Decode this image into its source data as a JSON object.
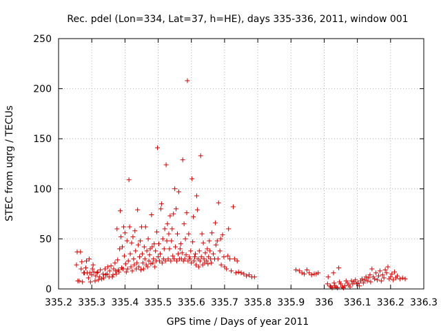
{
  "chart_data": {
    "type": "scatter",
    "title": "Rec. pdel (Lon=334, Lat=37, h=HE), days 335-336, 2011, window 001",
    "xlabel": "GPS time / Days of year 2011",
    "ylabel": "STEC from uqrg / TECUs",
    "xlim": [
      335.2,
      336.3
    ],
    "ylim": [
      0,
      250
    ],
    "xticks": [
      "335.2",
      "335.3",
      "335.4",
      "335.5",
      "335.6",
      "335.7",
      "335.8",
      "335.9",
      "336",
      "336.1",
      "336.2",
      "336.3"
    ],
    "yticks": [
      "0",
      "50",
      "100",
      "150",
      "200",
      "250"
    ],
    "grid": true,
    "marker": "+",
    "color": "#cc0000",
    "series": [
      {
        "name": "STEC",
        "points": [
          [
            335.254,
            24
          ],
          [
            335.256,
            37
          ],
          [
            335.258,
            8
          ],
          [
            335.262,
            8
          ],
          [
            335.266,
            37
          ],
          [
            335.268,
            20
          ],
          [
            335.27,
            27
          ],
          [
            335.272,
            7
          ],
          [
            335.276,
            16
          ],
          [
            335.278,
            16
          ],
          [
            335.282,
            21
          ],
          [
            335.284,
            28
          ],
          [
            335.286,
            16
          ],
          [
            335.29,
            11
          ],
          [
            335.292,
            30
          ],
          [
            335.294,
            16
          ],
          [
            335.296,
            7
          ],
          [
            335.3,
            14
          ],
          [
            335.302,
            20
          ],
          [
            335.304,
            24
          ],
          [
            335.306,
            17
          ],
          [
            335.31,
            8
          ],
          [
            335.312,
            13
          ],
          [
            335.316,
            16
          ],
          [
            335.318,
            17
          ],
          [
            335.32,
            9
          ],
          [
            335.324,
            12
          ],
          [
            335.326,
            19
          ],
          [
            335.33,
            10
          ],
          [
            335.334,
            15
          ],
          [
            335.336,
            11
          ],
          [
            335.34,
            20
          ],
          [
            335.342,
            14
          ],
          [
            335.346,
            15
          ],
          [
            335.348,
            22
          ],
          [
            335.352,
            12
          ],
          [
            335.354,
            18
          ],
          [
            335.358,
            23
          ],
          [
            335.362,
            12
          ],
          [
            335.364,
            14
          ],
          [
            335.366,
            20
          ],
          [
            335.37,
            26
          ],
          [
            335.372,
            18
          ],
          [
            335.374,
            15
          ],
          [
            335.376,
            60
          ],
          [
            335.378,
            29
          ],
          [
            335.38,
            19
          ],
          [
            335.382,
            17
          ],
          [
            335.384,
            40
          ],
          [
            335.386,
            78
          ],
          [
            335.388,
            52
          ],
          [
            335.39,
            21
          ],
          [
            335.392,
            42
          ],
          [
            335.394,
            20
          ],
          [
            335.396,
            62
          ],
          [
            335.398,
            33
          ],
          [
            335.4,
            56
          ],
          [
            335.402,
            25
          ],
          [
            335.404,
            17
          ],
          [
            335.406,
            48
          ],
          [
            335.408,
            20
          ],
          [
            335.41,
            28
          ],
          [
            335.412,
            109
          ],
          [
            335.414,
            62
          ],
          [
            335.416,
            35
          ],
          [
            335.418,
            22
          ],
          [
            335.42,
            46
          ],
          [
            335.422,
            18
          ],
          [
            335.424,
            52
          ],
          [
            335.426,
            30
          ],
          [
            335.428,
            24
          ],
          [
            335.43,
            58
          ],
          [
            335.432,
            38
          ],
          [
            335.434,
            20
          ],
          [
            335.436,
            26
          ],
          [
            335.438,
            79
          ],
          [
            335.44,
            44
          ],
          [
            335.442,
            22
          ],
          [
            335.444,
            32
          ],
          [
            335.446,
            48
          ],
          [
            335.448,
            19
          ],
          [
            335.45,
            62
          ],
          [
            335.452,
            35
          ],
          [
            335.454,
            26
          ],
          [
            335.456,
            20
          ],
          [
            335.458,
            42
          ],
          [
            335.46,
            30
          ],
          [
            335.462,
            62
          ],
          [
            335.464,
            24
          ],
          [
            335.466,
            38
          ],
          [
            335.468,
            22
          ],
          [
            335.47,
            50
          ],
          [
            335.472,
            28
          ],
          [
            335.474,
            34
          ],
          [
            335.476,
            40
          ],
          [
            335.478,
            25
          ],
          [
            335.48,
            74
          ],
          [
            335.482,
            42
          ],
          [
            335.484,
            26
          ],
          [
            335.486,
            30
          ],
          [
            335.488,
            45
          ],
          [
            335.49,
            22
          ],
          [
            335.492,
            38
          ],
          [
            335.494,
            28
          ],
          [
            335.496,
            57
          ],
          [
            335.498,
            141
          ],
          [
            335.5,
            32
          ],
          [
            335.502,
            45
          ],
          [
            335.504,
            28
          ],
          [
            335.506,
            35
          ],
          [
            335.508,
            80
          ],
          [
            335.51,
            85
          ],
          [
            335.512,
            26
          ],
          [
            335.514,
            50
          ],
          [
            335.516,
            30
          ],
          [
            335.518,
            40
          ],
          [
            335.52,
            60
          ],
          [
            335.522,
            28
          ],
          [
            335.524,
            124
          ],
          [
            335.526,
            48
          ],
          [
            335.528,
            65
          ],
          [
            335.53,
            30
          ],
          [
            335.532,
            55
          ],
          [
            335.534,
            40
          ],
          [
            335.536,
            73
          ],
          [
            335.538,
            28
          ],
          [
            335.54,
            48
          ],
          [
            335.542,
            60
          ],
          [
            335.544,
            33
          ],
          [
            335.546,
            75
          ],
          [
            335.548,
            30
          ],
          [
            335.55,
            100
          ],
          [
            335.552,
            42
          ],
          [
            335.554,
            80
          ],
          [
            335.556,
            28
          ],
          [
            335.558,
            55
          ],
          [
            335.56,
            35
          ],
          [
            335.562,
            97
          ],
          [
            335.564,
            30
          ],
          [
            335.566,
            40
          ],
          [
            335.568,
            45
          ],
          [
            335.57,
            30
          ],
          [
            335.572,
            36
          ],
          [
            335.574,
            129
          ],
          [
            335.576,
            28
          ],
          [
            335.578,
            65
          ],
          [
            335.58,
            30
          ],
          [
            335.582,
            50
          ],
          [
            335.584,
            34
          ],
          [
            335.586,
            76
          ],
          [
            335.588,
            208
          ],
          [
            335.59,
            28
          ],
          [
            335.592,
            55
          ],
          [
            335.594,
            32
          ],
          [
            335.596,
            30
          ],
          [
            335.598,
            38
          ],
          [
            335.6,
            26
          ],
          [
            335.602,
            110
          ],
          [
            335.604,
            47
          ],
          [
            335.606,
            72
          ],
          [
            335.608,
            28
          ],
          [
            335.61,
            32
          ],
          [
            335.612,
            35
          ],
          [
            335.614,
            24
          ],
          [
            335.616,
            93
          ],
          [
            335.618,
            79
          ],
          [
            335.62,
            30
          ],
          [
            335.622,
            22
          ],
          [
            335.624,
            38
          ],
          [
            335.626,
            28
          ],
          [
            335.628,
            133
          ],
          [
            335.63,
            32
          ],
          [
            335.632,
            55
          ],
          [
            335.634,
            24
          ],
          [
            335.636,
            46
          ],
          [
            335.638,
            30
          ],
          [
            335.64,
            26
          ],
          [
            335.642,
            36
          ],
          [
            335.646,
            28
          ],
          [
            335.648,
            40
          ],
          [
            335.65,
            25
          ],
          [
            335.652,
            32
          ],
          [
            335.654,
            48
          ],
          [
            335.656,
            38
          ],
          [
            335.658,
            30
          ],
          [
            335.66,
            26
          ],
          [
            335.662,
            56
          ],
          [
            335.666,
            35
          ],
          [
            335.67,
            30
          ],
          [
            335.672,
            66
          ],
          [
            335.674,
            44
          ],
          [
            335.678,
            48
          ],
          [
            335.68,
            30
          ],
          [
            335.682,
            86
          ],
          [
            335.686,
            38
          ],
          [
            335.688,
            50
          ],
          [
            335.69,
            24
          ],
          [
            335.694,
            54
          ],
          [
            335.698,
            32
          ],
          [
            335.7,
            22
          ],
          [
            335.706,
            20
          ],
          [
            335.71,
            33
          ],
          [
            335.712,
            60
          ],
          [
            335.716,
            30
          ],
          [
            335.72,
            18
          ],
          [
            335.726,
            82
          ],
          [
            335.73,
            30
          ],
          [
            335.734,
            16
          ],
          [
            335.738,
            28
          ],
          [
            335.742,
            17
          ],
          [
            335.75,
            16
          ],
          [
            335.758,
            15
          ],
          [
            335.766,
            13
          ],
          [
            335.774,
            14
          ],
          [
            335.782,
            12
          ],
          [
            335.79,
            12
          ],
          [
            335.915,
            19
          ],
          [
            335.925,
            18
          ],
          [
            335.933,
            16
          ],
          [
            335.94,
            15
          ],
          [
            335.948,
            19
          ],
          [
            335.955,
            16
          ],
          [
            335.962,
            14
          ],
          [
            335.97,
            15
          ],
          [
            335.976,
            15
          ],
          [
            335.982,
            16
          ],
          [
            336.01,
            5
          ],
          [
            336.012,
            12
          ],
          [
            336.018,
            3
          ],
          [
            336.02,
            2
          ],
          [
            336.024,
            1
          ],
          [
            336.028,
            16
          ],
          [
            336.03,
            6
          ],
          [
            336.032,
            3
          ],
          [
            336.036,
            2
          ],
          [
            336.04,
            1
          ],
          [
            336.044,
            21
          ],
          [
            336.046,
            7
          ],
          [
            336.05,
            5
          ],
          [
            336.054,
            2
          ],
          [
            336.058,
            1
          ],
          [
            336.062,
            3
          ],
          [
            336.066,
            8
          ],
          [
            336.07,
            6
          ],
          [
            336.074,
            4
          ],
          [
            336.078,
            2
          ],
          [
            336.082,
            8
          ],
          [
            336.086,
            5
          ],
          [
            336.09,
            7
          ],
          [
            336.094,
            9
          ],
          [
            336.098,
            5
          ],
          [
            336.102,
            6
          ],
          [
            336.106,
            3
          ],
          [
            336.11,
            8
          ],
          [
            336.114,
            10
          ],
          [
            336.118,
            6
          ],
          [
            336.122,
            9
          ],
          [
            336.126,
            12
          ],
          [
            336.13,
            8
          ],
          [
            336.134,
            11
          ],
          [
            336.138,
            14
          ],
          [
            336.14,
            7
          ],
          [
            336.144,
            20
          ],
          [
            336.148,
            12
          ],
          [
            336.152,
            10
          ],
          [
            336.156,
            16
          ],
          [
            336.16,
            9
          ],
          [
            336.164,
            13
          ],
          [
            336.168,
            18
          ],
          [
            336.172,
            8
          ],
          [
            336.176,
            14
          ],
          [
            336.18,
            11
          ],
          [
            336.184,
            19
          ],
          [
            336.188,
            16
          ],
          [
            336.192,
            22
          ],
          [
            336.196,
            10
          ],
          [
            336.2,
            12
          ],
          [
            336.204,
            15
          ],
          [
            336.208,
            9
          ],
          [
            336.212,
            17
          ],
          [
            336.216,
            11
          ],
          [
            336.22,
            13
          ],
          [
            336.228,
            10
          ],
          [
            336.236,
            11
          ],
          [
            336.244,
            10
          ]
        ]
      }
    ]
  }
}
